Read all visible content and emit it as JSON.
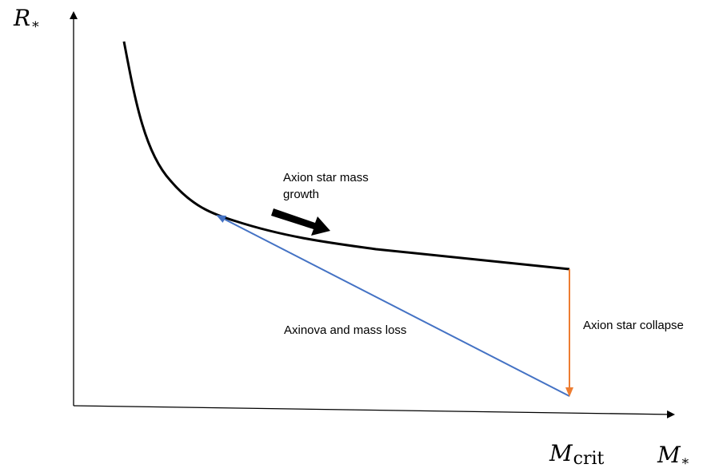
{
  "axes": {
    "y_label": "R",
    "y_label_sub": "*",
    "x_label": "M",
    "x_label_sub": "*"
  },
  "markers": {
    "m_crit": "M",
    "m_crit_sub": "crit"
  },
  "annotations": {
    "growth_line1": "Axion star mass",
    "growth_line2": "growth",
    "mass_loss": "Axinova and mass loss",
    "collapse": "Axion star collapse"
  },
  "colors": {
    "curve": "#000000",
    "mass_loss_arrow": "#4472c4",
    "collapse_arrow": "#ed7d31",
    "growth_arrow": "#000000"
  }
}
